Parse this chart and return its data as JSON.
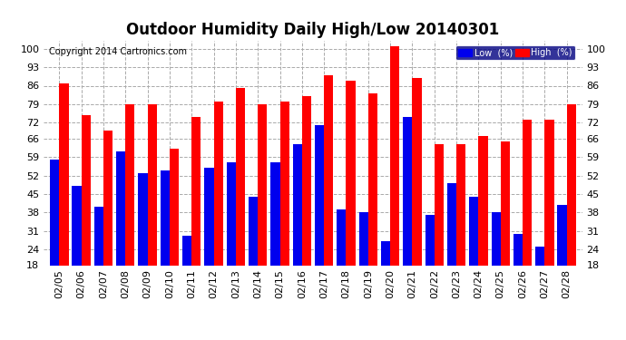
{
  "title": "Outdoor Humidity Daily High/Low 20140301",
  "copyright": "Copyright 2014 Cartronics.com",
  "dates": [
    "02/05",
    "02/06",
    "02/07",
    "02/08",
    "02/09",
    "02/10",
    "02/11",
    "02/12",
    "02/13",
    "02/14",
    "02/15",
    "02/16",
    "02/17",
    "02/18",
    "02/19",
    "02/20",
    "02/21",
    "02/22",
    "02/23",
    "02/24",
    "02/25",
    "02/26",
    "02/27",
    "02/28"
  ],
  "high": [
    87,
    75,
    69,
    79,
    79,
    62,
    74,
    80,
    85,
    79,
    80,
    82,
    90,
    88,
    83,
    101,
    89,
    64,
    64,
    67,
    65,
    73,
    73,
    79
  ],
  "low": [
    58,
    48,
    40,
    61,
    53,
    54,
    29,
    55,
    57,
    44,
    57,
    64,
    71,
    39,
    38,
    27,
    74,
    37,
    49,
    44,
    38,
    30,
    25,
    41
  ],
  "y_ticks": [
    18,
    24,
    31,
    38,
    45,
    52,
    59,
    66,
    72,
    79,
    86,
    93,
    100
  ],
  "ylim_min": 18,
  "ylim_max": 103,
  "bar_width": 0.42,
  "high_color": "#ff0000",
  "low_color": "#0000ee",
  "bg_color": "#ffffff",
  "grid_color": "#aaaaaa",
  "title_fontsize": 12,
  "tick_fontsize": 8,
  "copyright_fontsize": 7,
  "legend_low_label": "Low  (%)",
  "legend_high_label": "High  (%)"
}
